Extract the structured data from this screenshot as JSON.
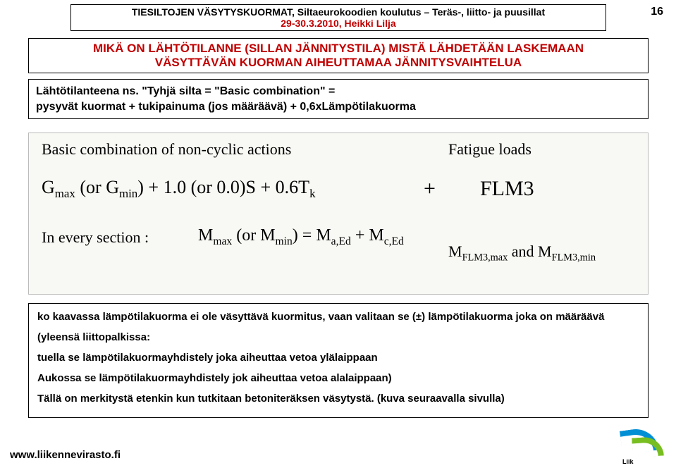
{
  "header": {
    "line1": "TIESILTOJEN VÄSYTYSKUORMAT, Siltaeurokoodien koulutus – Teräs-, liitto- ja puusillat",
    "line2": "29-30.3.2010, Heikki Lilja"
  },
  "page_number": "16",
  "title": {
    "line1": "MIKÄ ON LÄHTÖTILANNE (SILLAN JÄNNITYSTILA) MISTÄ LÄHDETÄÄN LASKEMAAN",
    "line2": "VÄSYTTÄVÄN KUORMAN AIHEUTTAMAA JÄNNITYSVAIHTELUA"
  },
  "intro": {
    "l1": "Lähtötilanteena ns. \"Tyhjä silta = \"Basic combination\" =",
    "l2": "pysyvät kuormat + tukipainuma (jos määräävä) + 0,6xLämpötilakuorma"
  },
  "formula": {
    "basic_label": "Basic combination of non-cyclic actions",
    "fatigue_label": "Fatigue loads",
    "gmax": "G",
    "gmax_sub": "max",
    "or1": " (or G",
    "gmin_sub": "min",
    "rest1": ") + 1.0 (or 0.0)S + 0.6T",
    "tk_sub": "k",
    "plus": "+",
    "flm3": "FLM3",
    "every": "In every section :",
    "mmax": "M",
    "mmax_sub": "max",
    "or2": " (or M",
    "mmin_sub": "min",
    "eq1a": ") = M",
    "maed_sub": "a,Ed",
    "plus2": " + M",
    "mced_sub": "c,Ed",
    "mf": "M",
    "mf1_sub": "FLM3,max",
    "and": " and M",
    "mf2_sub": "FLM3,min"
  },
  "bottom": {
    "p1": "ko kaavassa lämpötilakuorma ei ole väsyttävä kuormitus, vaan valitaan se (±) lämpötilakuorma joka on määräävä",
    "p2": "(yleensä liittopalkissa:",
    "p3": "tuella se lämpötilakuormayhdistely joka aiheuttaa vetoa ylälaippaan",
    "p4": "Aukossa se lämpötilakuormayhdistely jok aiheuttaa vetoa alalaippaan)",
    "p5": "Tällä on merkitystä etenkin kun tutkitaan betoniteräksen väsytystä. (kuva seuraavalla sivulla)"
  },
  "footer": {
    "url": "www.liikennevirasto.fi",
    "logo_text": "Liik"
  }
}
